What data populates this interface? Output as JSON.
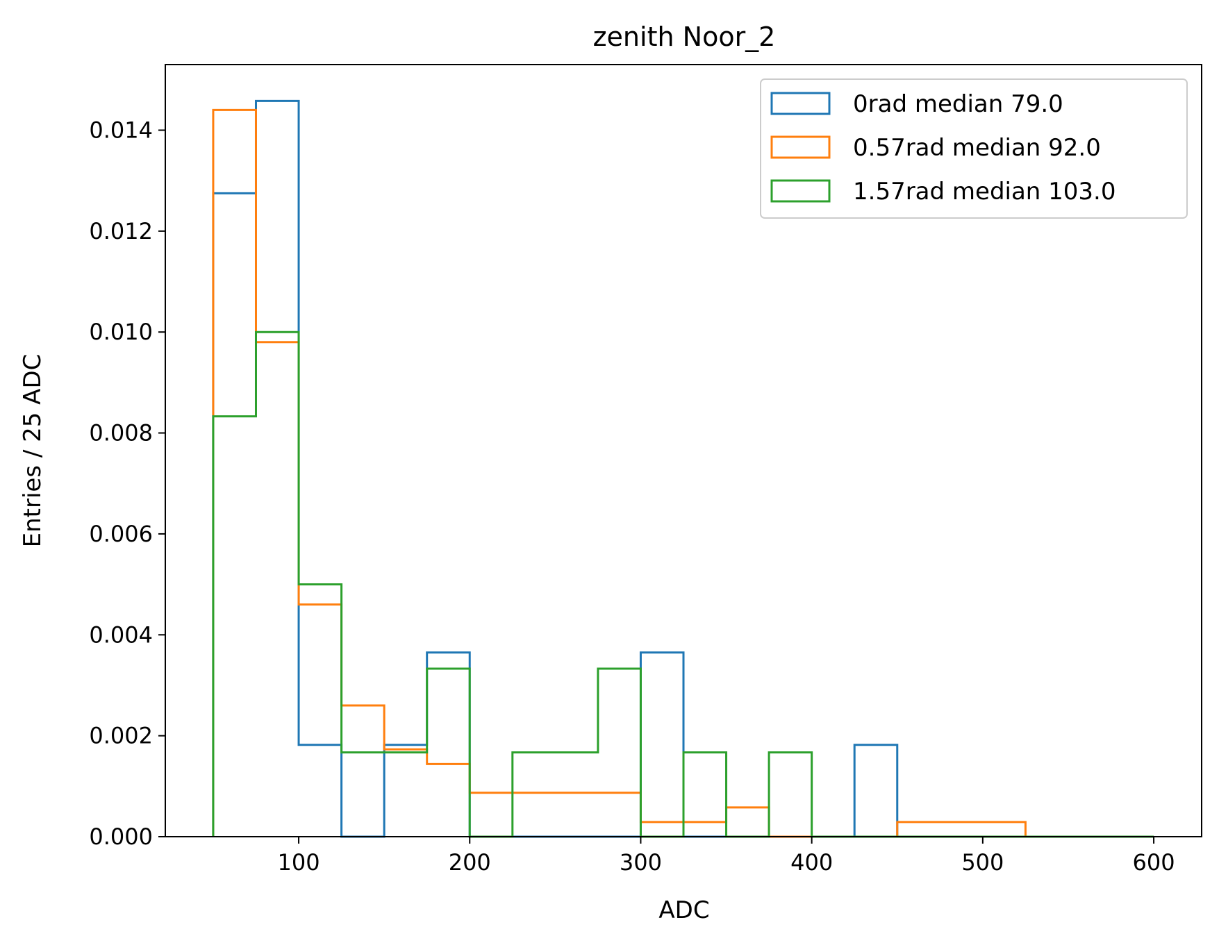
{
  "chart_data": {
    "type": "histogram-step",
    "title": "zenith Noor_2",
    "xlabel": "ADC",
    "ylabel": "Entries / 25 ADC",
    "xlim": [
      22,
      628
    ],
    "ylim": [
      0,
      0.0153
    ],
    "xticks": [
      100,
      200,
      300,
      400,
      500,
      600
    ],
    "yticks": [
      0.0,
      0.002,
      0.004,
      0.006,
      0.008,
      0.01,
      0.012,
      0.014
    ],
    "xtick_labels": [
      "100",
      "200",
      "300",
      "400",
      "500",
      "600"
    ],
    "ytick_labels": [
      "0.000",
      "0.002",
      "0.004",
      "0.006",
      "0.008",
      "0.010",
      "0.012",
      "0.014"
    ],
    "grid": false,
    "legend_position": "top-right",
    "bin_edges": [
      50,
      75,
      100,
      125,
      150,
      175,
      200,
      225,
      250,
      275,
      300,
      325,
      350,
      375,
      400,
      425,
      450,
      475,
      500,
      525,
      550,
      575,
      600
    ],
    "series": [
      {
        "name": "0rad median 79.0",
        "color": "#1f77b4",
        "values": [
          0.01275,
          0.01458,
          0.00182,
          0.0,
          0.00182,
          0.00365,
          0.0,
          0.0,
          0.0,
          0.0,
          0.00365,
          0.0,
          0.0,
          0.0,
          0.0,
          0.00182,
          0.0,
          0.0,
          0.0,
          0.0,
          0.0,
          0.0
        ]
      },
      {
        "name": "0.57rad median 92.0",
        "color": "#ff7f0e",
        "values": [
          0.0144,
          0.0098,
          0.0046,
          0.0026,
          0.00173,
          0.00144,
          0.00087,
          0.00087,
          0.00087,
          0.00087,
          0.00029,
          0.00029,
          0.00058,
          0.0,
          0.0,
          0.0,
          0.00029,
          0.00029,
          0.00029,
          0.0,
          0.0,
          0.0
        ]
      },
      {
        "name": "1.57rad median 103.0",
        "color": "#2ca02c",
        "values": [
          0.00833,
          0.01,
          0.005,
          0.00167,
          0.00167,
          0.00333,
          0.0,
          0.00167,
          0.00167,
          0.00333,
          0.0,
          0.00167,
          0.0,
          0.00167,
          0.0,
          0.0,
          0.0,
          0.0,
          0.0,
          0.0,
          0.0,
          0.0
        ]
      }
    ]
  }
}
